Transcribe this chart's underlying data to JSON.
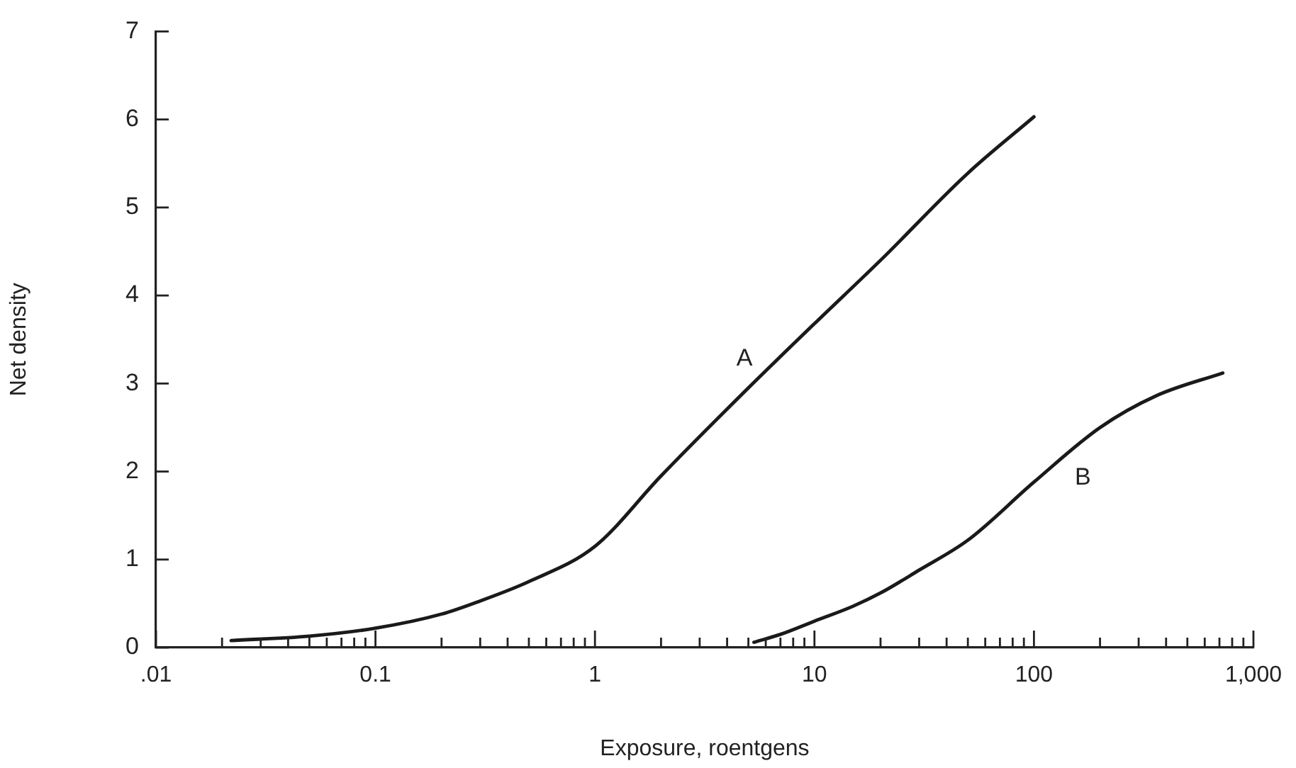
{
  "chart_data": {
    "type": "line",
    "xlabel": "Exposure, roentgens",
    "ylabel": "Net density",
    "log": "x",
    "xlim": [
      0.01,
      1000
    ],
    "ylim": [
      0,
      7
    ],
    "xticks": [
      {
        "value": 0.01,
        "label": ".01"
      },
      {
        "value": 0.02,
        "label": null
      },
      {
        "value": 0.03,
        "label": null
      },
      {
        "value": 0.04,
        "label": null
      },
      {
        "value": 0.05,
        "label": null
      },
      {
        "value": 0.06,
        "label": null
      },
      {
        "value": 0.07,
        "label": null
      },
      {
        "value": 0.08,
        "label": null
      },
      {
        "value": 0.09,
        "label": null
      },
      {
        "value": 0.1,
        "label": "0.1"
      },
      {
        "value": 0.2,
        "label": null
      },
      {
        "value": 0.3,
        "label": null
      },
      {
        "value": 0.4,
        "label": null
      },
      {
        "value": 0.5,
        "label": null
      },
      {
        "value": 0.6,
        "label": null
      },
      {
        "value": 0.7,
        "label": null
      },
      {
        "value": 0.8,
        "label": null
      },
      {
        "value": 0.9,
        "label": null
      },
      1,
      {
        "value": 2,
        "label": null
      },
      {
        "value": 3,
        "label": null
      },
      {
        "value": 4,
        "label": null
      },
      {
        "value": 5,
        "label": null
      },
      {
        "value": 6,
        "label": null
      },
      {
        "value": 7,
        "label": null
      },
      {
        "value": 8,
        "label": null
      },
      {
        "value": 9,
        "label": null
      },
      10,
      {
        "value": 20,
        "label": null
      },
      {
        "value": 30,
        "label": null
      },
      {
        "value": 40,
        "label": null
      },
      {
        "value": 50,
        "label": null
      },
      {
        "value": 60,
        "label": null
      },
      {
        "value": 70,
        "label": null
      },
      {
        "value": 80,
        "label": null
      },
      {
        "value": 90,
        "label": null
      },
      100,
      {
        "value": 200,
        "label": null
      },
      {
        "value": 300,
        "label": null
      },
      {
        "value": 400,
        "label": null
      },
      {
        "value": 500,
        "label": null
      },
      {
        "value": 600,
        "label": null
      },
      {
        "value": 700,
        "label": null
      },
      {
        "value": 800,
        "label": null
      },
      {
        "value": 900,
        "label": null
      },
      {
        "value": 1000,
        "label": "1,000"
      }
    ],
    "yticks": [
      0,
      1,
      2,
      3,
      4,
      5,
      6,
      7
    ],
    "grid": false,
    "legend": false,
    "marker": "none",
    "line_style": "solid",
    "series": [
      {
        "name": "A",
        "color": "#1a1a1a",
        "x": [
          0.022,
          0.05,
          0.1,
          0.2,
          0.3,
          0.5,
          1,
          2,
          5,
          10,
          20,
          50,
          100
        ],
        "values": [
          0.08,
          0.13,
          0.22,
          0.38,
          0.53,
          0.75,
          1.15,
          1.95,
          2.95,
          3.68,
          4.4,
          5.39,
          6.03
        ]
      },
      {
        "name": "B",
        "color": "#1a1a1a",
        "x": [
          5.3,
          7,
          10,
          15,
          20,
          30,
          50,
          100,
          200,
          360,
          725
        ],
        "values": [
          0.06,
          0.15,
          0.3,
          0.47,
          0.62,
          0.88,
          1.22,
          1.88,
          2.5,
          2.86,
          3.12
        ]
      }
    ]
  }
}
